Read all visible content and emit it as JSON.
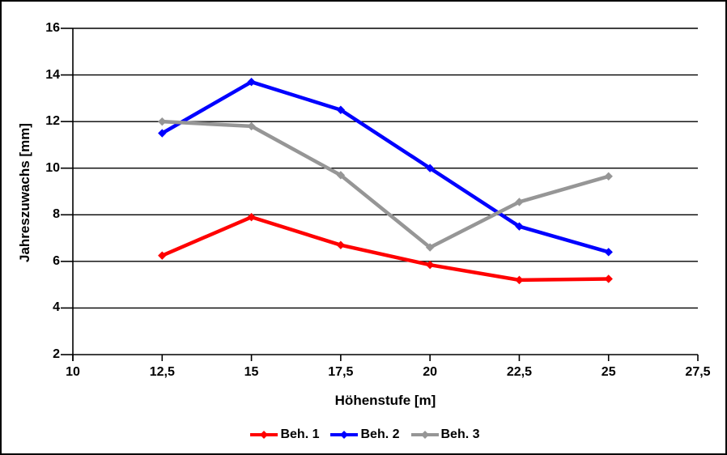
{
  "chart_data": {
    "type": "line",
    "title": "",
    "xlabel": "Höhenstufe [m]",
    "ylabel": "Jahreszuwachs [mm]",
    "xlim": [
      10,
      27.5
    ],
    "ylim": [
      2,
      16
    ],
    "grid": "horizontal",
    "legend_position": "bottom-center",
    "axis_color": "#000000",
    "background_color": "#ffffff",
    "xticks": {
      "values": [
        10,
        12.5,
        15,
        17.5,
        20,
        22.5,
        25,
        27.5
      ],
      "labels": [
        "10",
        "12,5",
        "15",
        "17,5",
        "20",
        "22,5",
        "25",
        "27,5"
      ]
    },
    "yticks": {
      "values": [
        2,
        4,
        6,
        8,
        10,
        12,
        14,
        16
      ],
      "labels": [
        "2",
        "4",
        "6",
        "8",
        "10",
        "12",
        "14",
        "16"
      ]
    },
    "x": [
      12.5,
      15,
      17.5,
      20,
      22.5,
      25
    ],
    "series": [
      {
        "name": "Beh. 1",
        "color": "#ff0000",
        "marker": "diamond",
        "values": [
          6.25,
          7.9,
          6.7,
          5.85,
          5.2,
          5.25
        ]
      },
      {
        "name": "Beh. 2",
        "color": "#0000ff",
        "marker": "diamond",
        "values": [
          11.5,
          13.7,
          12.5,
          10.0,
          7.5,
          6.4
        ]
      },
      {
        "name": "Beh. 3",
        "color": "#969696",
        "marker": "diamond",
        "values": [
          12.0,
          11.8,
          9.7,
          6.6,
          8.55,
          9.65
        ]
      }
    ]
  }
}
